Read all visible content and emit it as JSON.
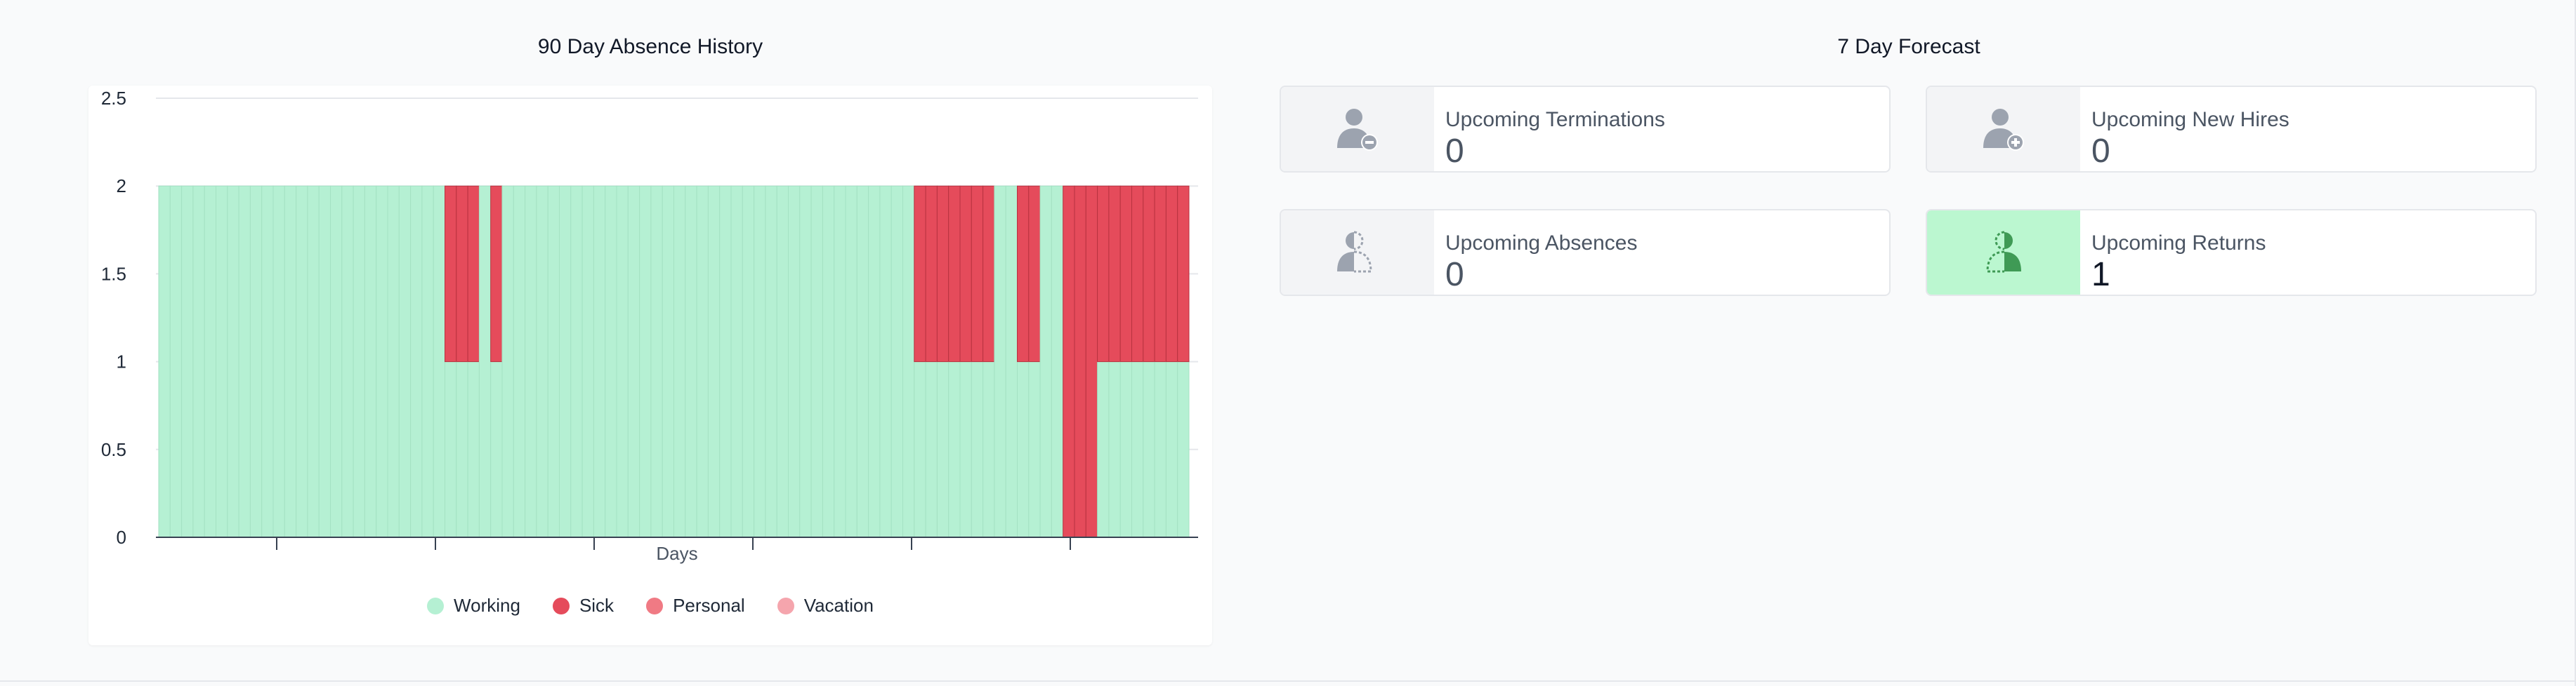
{
  "history": {
    "title": "90 Day Absence History"
  },
  "forecast": {
    "title": "7 Day Forecast",
    "cards": {
      "terminations": {
        "label": "Upcoming Terminations",
        "value": "0",
        "icon": "user-minus-icon"
      },
      "new_hires": {
        "label": "Upcoming New Hires",
        "value": "0",
        "icon": "user-plus-icon"
      },
      "absences": {
        "label": "Upcoming Absences",
        "value": "0",
        "icon": "user-absence-icon"
      },
      "returns": {
        "label": "Upcoming Returns",
        "value": "1",
        "icon": "user-return-icon"
      }
    }
  },
  "colors": {
    "working": "#b5f0d3",
    "sick": "#e54b5b",
    "personal": "#f07a84",
    "vacation": "#f5a5ad",
    "icon_gray": "#9ca3af",
    "icon_green": "#3f9a55"
  },
  "chart_data": {
    "type": "bar",
    "stacked": true,
    "title": "90 Day Absence History",
    "xlabel": "Days",
    "ylabel": "",
    "ylim": [
      0,
      2.5
    ],
    "yticks": [
      "0",
      "0.5",
      "1",
      "1.5",
      "2",
      "2.5"
    ],
    "grid": true,
    "legend_position": "bottom",
    "day_count": 90,
    "series": [
      {
        "name": "Working",
        "color": "#b5f0d3",
        "values": [
          2,
          2,
          2,
          2,
          2,
          2,
          2,
          2,
          2,
          2,
          2,
          2,
          2,
          2,
          2,
          2,
          2,
          2,
          2,
          2,
          2,
          2,
          2,
          2,
          2,
          1,
          1,
          1,
          2,
          1,
          2,
          2,
          2,
          2,
          2,
          2,
          2,
          2,
          2,
          2,
          2,
          2,
          2,
          2,
          2,
          2,
          2,
          2,
          2,
          2,
          2,
          2,
          2,
          2,
          2,
          2,
          2,
          2,
          2,
          2,
          2,
          2,
          2,
          2,
          2,
          2,
          1,
          1,
          1,
          1,
          1,
          1,
          1,
          2,
          2,
          1,
          1,
          2,
          2,
          0,
          0,
          0,
          1,
          1,
          1,
          1,
          1,
          1,
          1,
          1
        ]
      },
      {
        "name": "Sick",
        "color": "#e54b5b",
        "values": [
          0,
          0,
          0,
          0,
          0,
          0,
          0,
          0,
          0,
          0,
          0,
          0,
          0,
          0,
          0,
          0,
          0,
          0,
          0,
          0,
          0,
          0,
          0,
          0,
          0,
          1,
          1,
          1,
          0,
          1,
          0,
          0,
          0,
          0,
          0,
          0,
          0,
          0,
          0,
          0,
          0,
          0,
          0,
          0,
          0,
          0,
          0,
          0,
          0,
          0,
          0,
          0,
          0,
          0,
          0,
          0,
          0,
          0,
          0,
          0,
          0,
          0,
          0,
          0,
          0,
          0,
          1,
          1,
          1,
          1,
          1,
          1,
          1,
          0,
          0,
          1,
          1,
          0,
          0,
          2,
          2,
          2,
          1,
          1,
          1,
          1,
          1,
          1,
          1,
          1
        ]
      },
      {
        "name": "Personal",
        "color": "#f07a84",
        "values": []
      },
      {
        "name": "Vacation",
        "color": "#f5a5ad",
        "values": []
      }
    ]
  }
}
